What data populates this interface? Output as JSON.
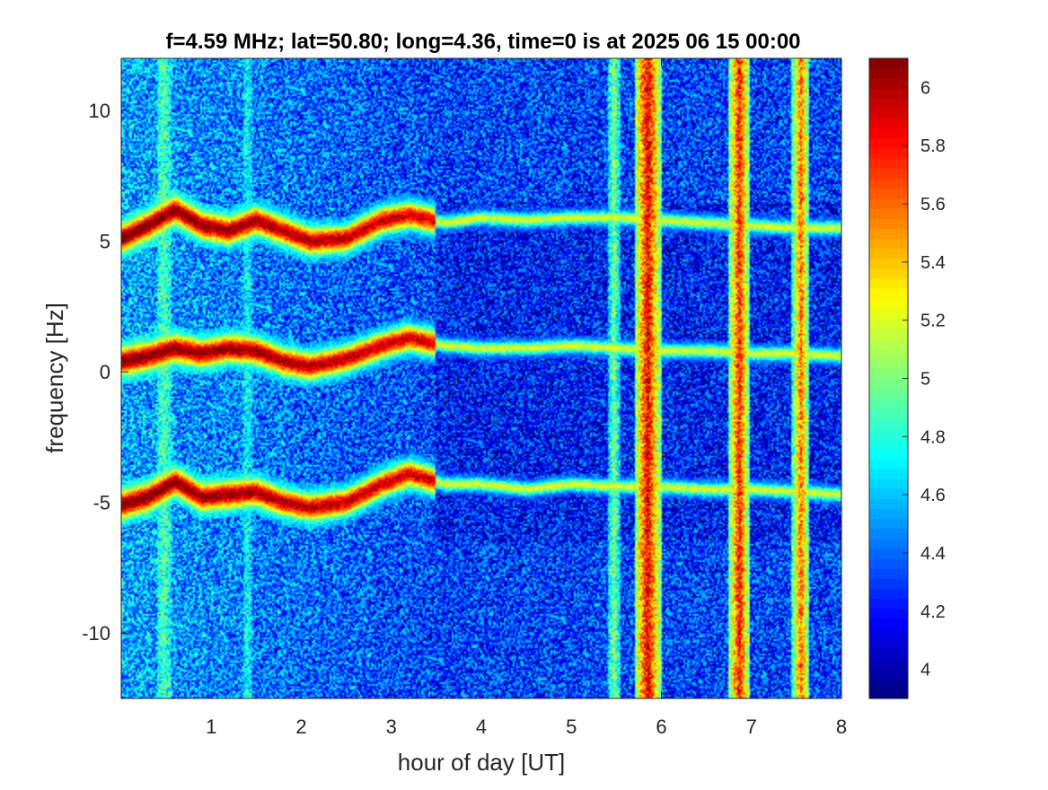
{
  "chart_data": {
    "type": "heatmap",
    "title": "f=4.59 MHz;  lat=50.80; long=4.36, time=0 is at 2025 06 15 00:00",
    "xlabel": "hour of day [UT]",
    "ylabel": "frequency [Hz]",
    "xlim": [
      0,
      8
    ],
    "ylim": [
      -12.5,
      12.0
    ],
    "x_ticks": [
      1,
      2,
      3,
      4,
      5,
      6,
      7,
      8
    ],
    "y_ticks": [
      -10,
      -5,
      0,
      5,
      10
    ],
    "colormap": "jet",
    "clim": [
      3.9,
      6.1
    ],
    "colorbar_ticks": [
      4,
      4.2,
      4.4,
      4.6,
      4.8,
      5,
      5.2,
      5.4,
      5.6,
      5.8,
      6
    ],
    "traces": [
      {
        "name": "upper trace",
        "points": [
          [
            0.0,
            5.1
          ],
          [
            0.3,
            5.6
          ],
          [
            0.6,
            6.2
          ],
          [
            0.9,
            5.6
          ],
          [
            1.2,
            5.4
          ],
          [
            1.5,
            5.8
          ],
          [
            1.8,
            5.4
          ],
          [
            2.1,
            5.0
          ],
          [
            2.5,
            5.1
          ],
          [
            2.9,
            5.8
          ],
          [
            3.2,
            6.0
          ],
          [
            3.6,
            5.7
          ],
          [
            4.0,
            5.9
          ],
          [
            4.5,
            5.8
          ],
          [
            5.0,
            5.9
          ],
          [
            5.5,
            5.9
          ],
          [
            6.0,
            5.8
          ],
          [
            6.5,
            5.7
          ],
          [
            7.0,
            5.6
          ],
          [
            7.5,
            5.5
          ],
          [
            8.0,
            5.5
          ]
        ]
      },
      {
        "name": "middle trace",
        "points": [
          [
            0.0,
            0.4
          ],
          [
            0.3,
            0.6
          ],
          [
            0.6,
            0.9
          ],
          [
            0.9,
            0.7
          ],
          [
            1.2,
            0.9
          ],
          [
            1.5,
            0.8
          ],
          [
            1.8,
            0.4
          ],
          [
            2.1,
            0.2
          ],
          [
            2.5,
            0.5
          ],
          [
            2.9,
            1.0
          ],
          [
            3.2,
            1.3
          ],
          [
            3.6,
            1.0
          ],
          [
            4.0,
            0.9
          ],
          [
            4.5,
            0.9
          ],
          [
            5.0,
            1.0
          ],
          [
            5.5,
            0.9
          ],
          [
            6.0,
            0.8
          ],
          [
            6.5,
            0.8
          ],
          [
            7.0,
            0.7
          ],
          [
            7.5,
            0.7
          ],
          [
            8.0,
            0.6
          ]
        ]
      },
      {
        "name": "lower trace",
        "points": [
          [
            0.0,
            -5.1
          ],
          [
            0.3,
            -4.8
          ],
          [
            0.6,
            -4.2
          ],
          [
            0.9,
            -4.8
          ],
          [
            1.2,
            -4.7
          ],
          [
            1.5,
            -4.6
          ],
          [
            1.8,
            -5.0
          ],
          [
            2.1,
            -5.2
          ],
          [
            2.5,
            -5.0
          ],
          [
            2.9,
            -4.3
          ],
          [
            3.2,
            -3.9
          ],
          [
            3.6,
            -4.3
          ],
          [
            4.0,
            -4.3
          ],
          [
            4.5,
            -4.5
          ],
          [
            5.0,
            -4.3
          ],
          [
            5.5,
            -4.4
          ],
          [
            6.0,
            -4.4
          ],
          [
            6.5,
            -4.5
          ],
          [
            7.0,
            -4.5
          ],
          [
            7.5,
            -4.6
          ],
          [
            8.0,
            -4.7
          ]
        ]
      }
    ],
    "interference_bands": [
      {
        "x_start": 0.4,
        "x_end": 0.55,
        "level": 4.9
      },
      {
        "x_start": 1.35,
        "x_end": 1.45,
        "level": 4.7
      },
      {
        "x_start": 5.4,
        "x_end": 5.55,
        "level": 5.0
      },
      {
        "x_start": 5.7,
        "x_end": 6.0,
        "level": 5.9
      },
      {
        "x_start": 6.75,
        "x_end": 6.98,
        "level": 5.8
      },
      {
        "x_start": 7.45,
        "x_end": 7.65,
        "level": 5.6
      }
    ]
  }
}
